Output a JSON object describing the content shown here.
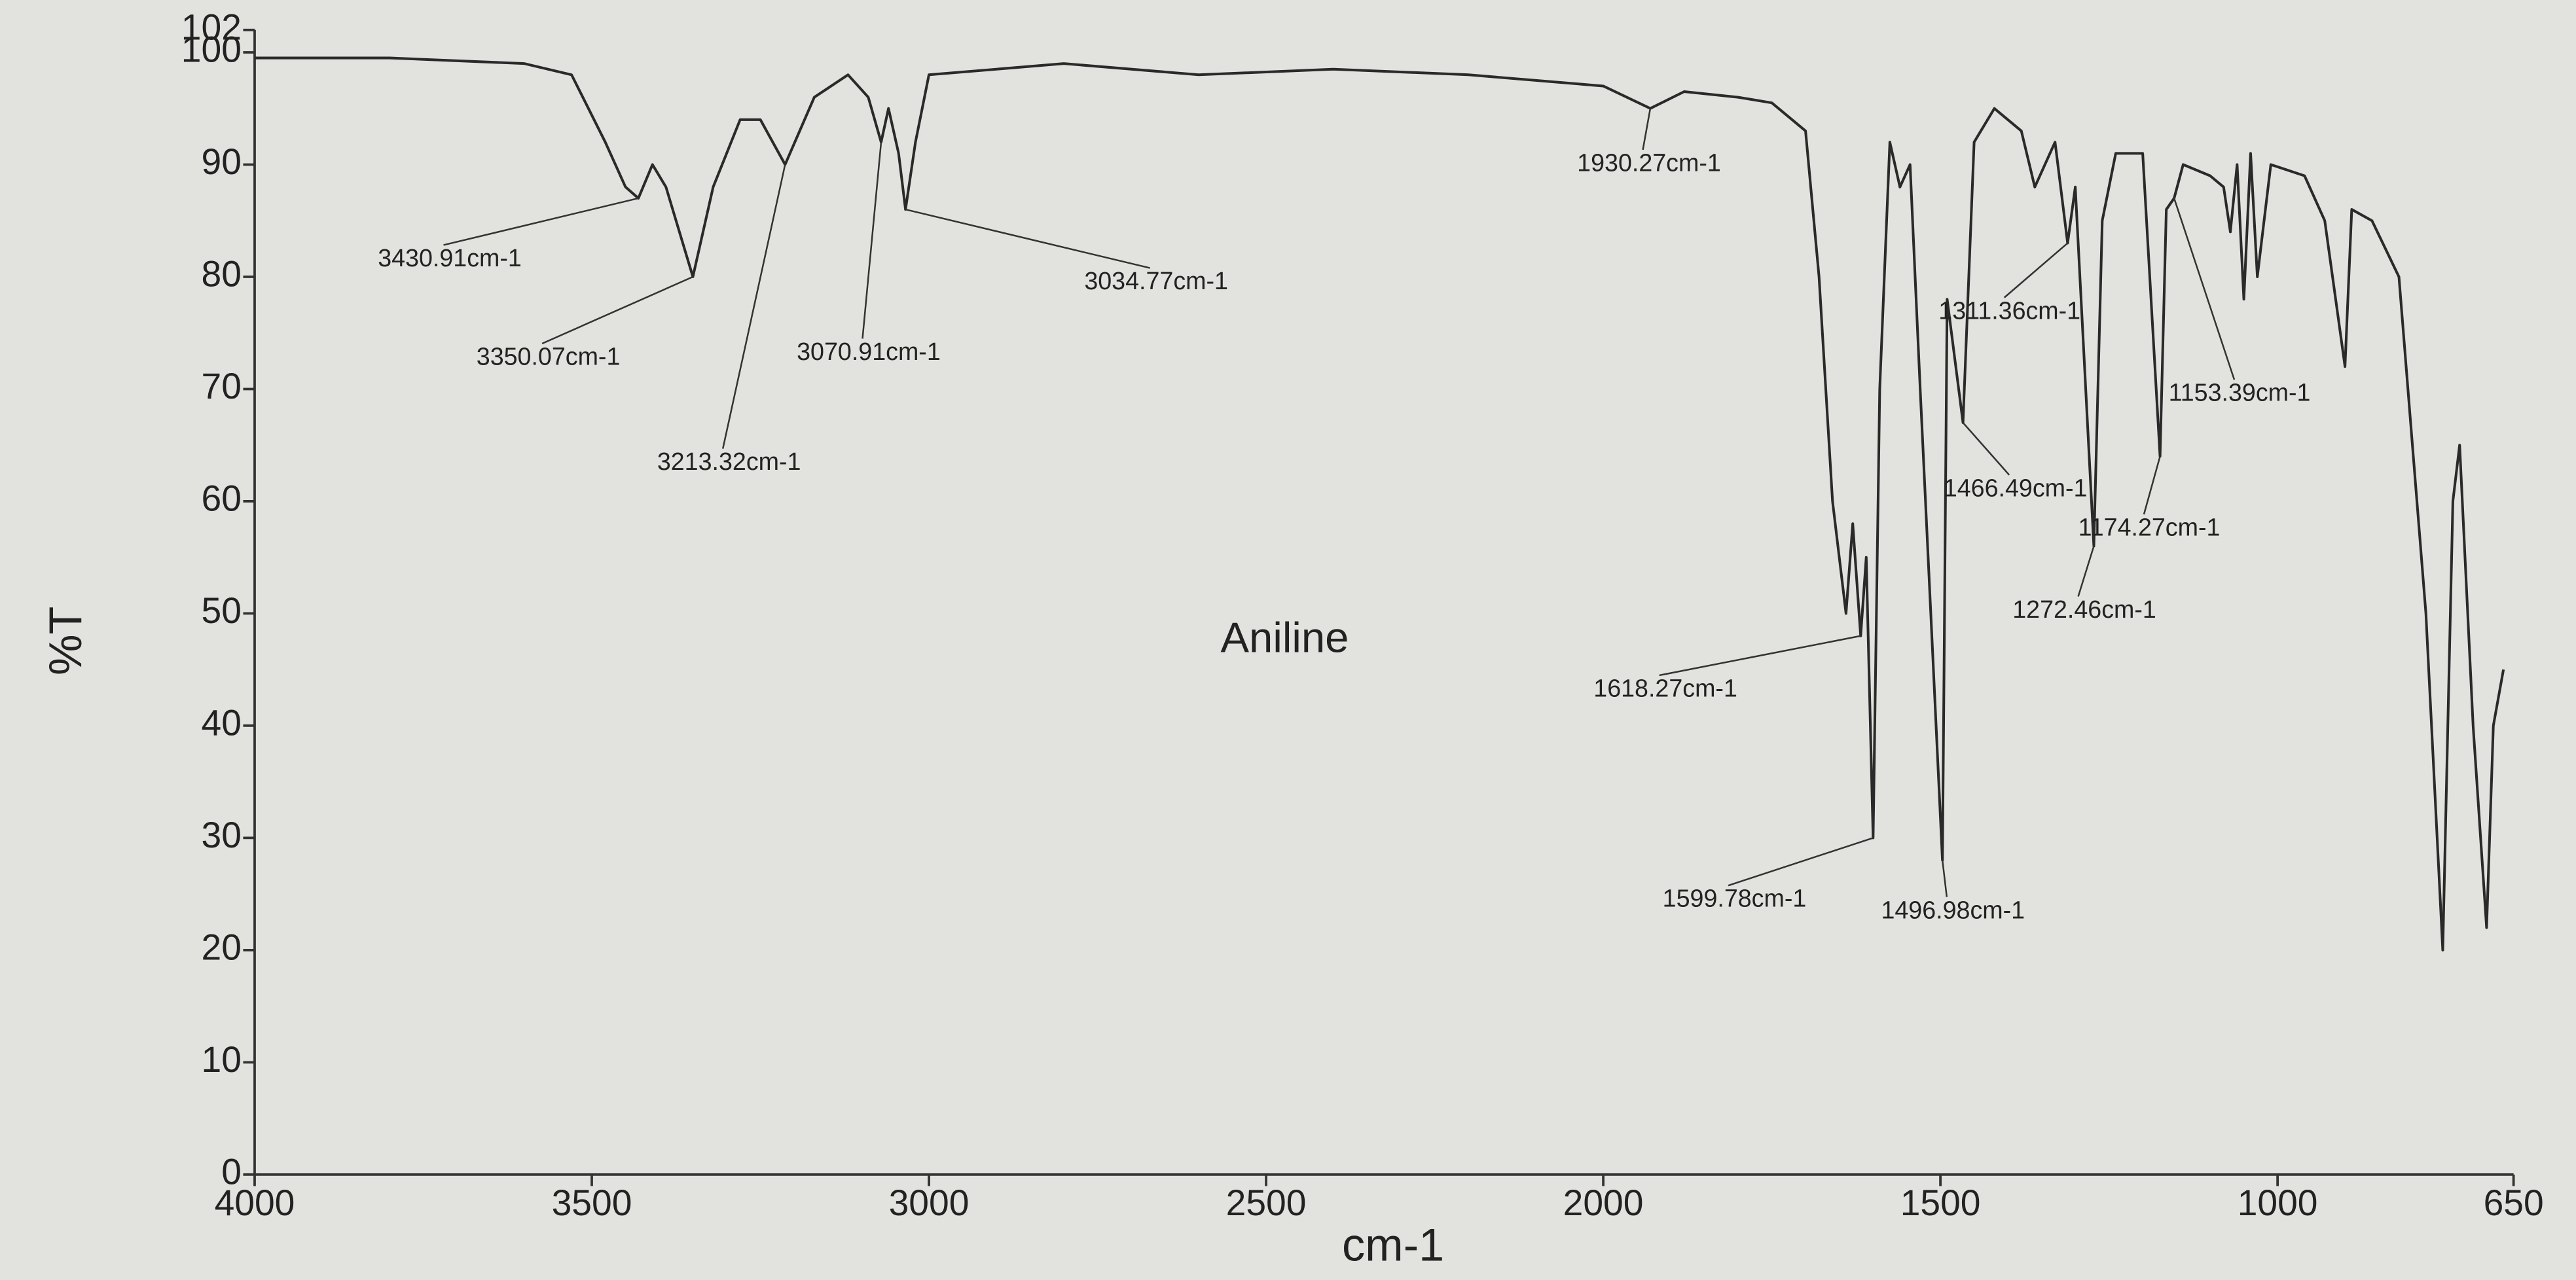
{
  "chart_data": {
    "type": "line",
    "title": "Aniline",
    "x_label": "cm-1",
    "y_label": "%T",
    "xlim": [
      4000,
      650
    ],
    "ylim": [
      0,
      102
    ],
    "xticks": [
      4000,
      3500,
      3000,
      2500,
      2000,
      1500,
      1000,
      650
    ],
    "yticks": [
      0,
      10,
      20,
      30,
      40,
      50,
      60,
      70,
      80,
      90,
      100,
      102
    ],
    "grid": false,
    "color": "#2a2a2a",
    "x": [
      4000,
      3800,
      3600,
      3530,
      3480,
      3450,
      3430.91,
      3410,
      3390,
      3350.07,
      3320,
      3280,
      3250,
      3213.32,
      3170,
      3120,
      3090,
      3070.91,
      3060,
      3045,
      3034.77,
      3020,
      3000,
      2800,
      2600,
      2400,
      2200,
      2000,
      1930.27,
      1880,
      1800,
      1750,
      1700,
      1680,
      1660,
      1640,
      1630,
      1618.27,
      1610,
      1599.78,
      1590,
      1575,
      1560,
      1545,
      1530,
      1496.98,
      1490,
      1466.49,
      1450,
      1420,
      1380,
      1360,
      1330,
      1311.36,
      1300,
      1272.46,
      1260,
      1240,
      1200,
      1174.27,
      1165,
      1153.39,
      1140,
      1100,
      1080,
      1070,
      1060,
      1050,
      1040,
      1030,
      1010,
      960,
      930,
      900,
      890,
      860,
      820,
      780,
      755,
      740,
      730,
      710,
      690,
      680,
      665
    ],
    "values": [
      99.5,
      99.5,
      99,
      98,
      92,
      88,
      87,
      90,
      88,
      80,
      88,
      94,
      94,
      90,
      96,
      98,
      96,
      92,
      95,
      91,
      86,
      92,
      98,
      99,
      98,
      98.5,
      98,
      97,
      95,
      96.5,
      96,
      95.5,
      93,
      80,
      60,
      50,
      58,
      48,
      55,
      30,
      70,
      92,
      88,
      90,
      70,
      28,
      78,
      67,
      92,
      95,
      93,
      88,
      92,
      83,
      88,
      56,
      85,
      91,
      91,
      64,
      86,
      87,
      90,
      89,
      88,
      84,
      90,
      78,
      91,
      80,
      90,
      89,
      85,
      72,
      86,
      85,
      80,
      50,
      20,
      60,
      65,
      40,
      22,
      40,
      45
    ],
    "annotations": [
      {
        "label": "3430.91cm-1",
        "x": 3430.91,
        "y": 87
      },
      {
        "label": "3350.07cm-1",
        "x": 3350.07,
        "y": 80
      },
      {
        "label": "3213.32cm-1",
        "x": 3213.32,
        "y": 90
      },
      {
        "label": "3070.91cm-1",
        "x": 3070.91,
        "y": 92
      },
      {
        "label": "3034.77cm-1",
        "x": 3034.77,
        "y": 86
      },
      {
        "label": "1930.27cm-1",
        "x": 1930.27,
        "y": 95
      },
      {
        "label": "1618.27cm-1",
        "x": 1618.27,
        "y": 48
      },
      {
        "label": "1599.78cm-1",
        "x": 1599.78,
        "y": 30
      },
      {
        "label": "1496.98cm-1",
        "x": 1496.98,
        "y": 28
      },
      {
        "label": "1466.49cm-1",
        "x": 1466.49,
        "y": 67
      },
      {
        "label": "1311.36cm-1",
        "x": 1311.36,
        "y": 83
      },
      {
        "label": "1272.46cm-1",
        "x": 1272.46,
        "y": 56
      },
      {
        "label": "1174.27cm-1",
        "x": 1174.27,
        "y": 64
      },
      {
        "label": "1153.39cm-1",
        "x": 1153.39,
        "y": 87
      }
    ]
  }
}
